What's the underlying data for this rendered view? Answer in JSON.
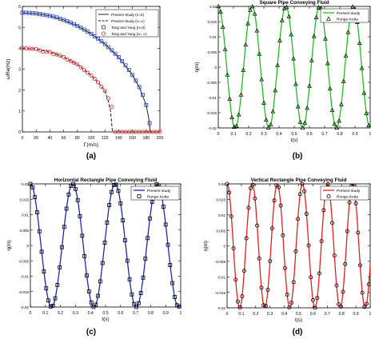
{
  "colors": {
    "panel_a_present": "#222222",
    "panel_a_square": "#1f3fbf",
    "panel_a_circle": "#e02020",
    "panel_b_line": "#22bb22",
    "panel_c_line": "#1a2aa8",
    "panel_d_line": "#e02222",
    "marker": "#000000",
    "axis": "#000000"
  },
  "chart_data": [
    {
      "type": "line",
      "panel_label": "(a)",
      "title": "",
      "xlabel": "Γ(m/s)",
      "ylabel": "ωRe(Hz)",
      "xlim": [
        0,
        200
      ],
      "ylim": [
        0,
        6
      ],
      "xticks": [
        "0",
        "20",
        "40",
        "60",
        "80",
        "100",
        "120",
        "140",
        "160",
        "180",
        "200"
      ],
      "yticks": [
        "0",
        "1",
        "2",
        "3",
        "4",
        "5",
        "6"
      ],
      "legend_position": "top-right",
      "legend": [
        "Present Study (n=0)",
        "Present Study (n=∞)",
        "Tang and Yang (n=0)",
        "Tang and Yang (n= ∞)"
      ],
      "series": [
        {
          "name": "Present Study (n=0)",
          "style": "solid",
          "critical_x": 186,
          "x": [
            0,
            20,
            40,
            60,
            80,
            100,
            120,
            140,
            160,
            170,
            180,
            184,
            186,
            200
          ],
          "y": [
            5.7,
            5.66,
            5.55,
            5.35,
            5.07,
            4.69,
            4.2,
            3.57,
            2.72,
            2.14,
            1.29,
            0.6,
            0,
            0
          ]
        },
        {
          "name": "Present Study (n=∞)",
          "style": "dashed",
          "critical_x": 131,
          "x": [
            0,
            20,
            40,
            60,
            80,
            100,
            110,
            120,
            125,
            128,
            131,
            200
          ],
          "y": [
            4.0,
            3.96,
            3.82,
            3.58,
            3.22,
            2.7,
            2.37,
            1.96,
            1.46,
            1.04,
            0,
            0
          ]
        },
        {
          "name": "Tang and Yang (n=0)",
          "marker": "square",
          "x": [
            0,
            5,
            10,
            15,
            20,
            25,
            30,
            35,
            40,
            45,
            50,
            55,
            60,
            65,
            70,
            75,
            80,
            85,
            90,
            95,
            100,
            105,
            110,
            115,
            120,
            125,
            130,
            135,
            140,
            145,
            150,
            155,
            160,
            165,
            170,
            175,
            180,
            185
          ],
          "y": [
            5.7,
            5.7,
            5.69,
            5.67,
            5.66,
            5.63,
            5.61,
            5.58,
            5.55,
            5.51,
            5.47,
            5.41,
            5.35,
            5.29,
            5.23,
            5.15,
            5.07,
            4.98,
            4.89,
            4.79,
            4.69,
            4.57,
            4.46,
            4.33,
            4.2,
            4.05,
            3.9,
            3.74,
            3.57,
            3.38,
            3.18,
            2.96,
            2.72,
            2.45,
            2.14,
            1.77,
            1.29,
            0.42
          ]
        },
        {
          "name": "Tang and Yang (n= ∞)",
          "marker": "circle",
          "x": [
            0,
            5,
            10,
            15,
            20,
            25,
            30,
            35,
            40,
            45,
            50,
            55,
            60,
            65,
            70,
            75,
            80,
            85,
            90,
            95,
            100,
            105,
            110,
            115,
            120,
            125,
            130,
            135,
            140,
            145,
            150,
            155,
            160,
            165,
            170,
            175,
            180,
            185,
            190,
            195,
            200
          ],
          "y": [
            4.0,
            3.99,
            3.98,
            3.97,
            3.96,
            3.9,
            3.84,
            3.83,
            3.82,
            3.73,
            3.7,
            3.64,
            3.58,
            3.47,
            3.39,
            3.3,
            3.22,
            3.08,
            2.95,
            2.83,
            2.7,
            2.54,
            2.37,
            2.16,
            1.96,
            1.6,
            1.2,
            0,
            0,
            0,
            0,
            0,
            0,
            0,
            0,
            0,
            0,
            0,
            0,
            0,
            0
          ]
        }
      ]
    },
    {
      "type": "line",
      "panel_label": "(b)",
      "title": "Square Pipe Conveying Fluid",
      "xlabel": "t(s)",
      "ylabel": "η(m)",
      "xlim": [
        0,
        1
      ],
      "ylim": [
        -0.02,
        0.02
      ],
      "xticks": [
        "0",
        "0.1",
        "0.2",
        "0.3",
        "0.4",
        "0.5",
        "0.6",
        "0.7",
        "0.8",
        "0.9",
        "1"
      ],
      "yticks": [
        "-0.02",
        "-0.015",
        "-0.01",
        "-0.005",
        "0",
        "0.005",
        "0.01",
        "0.015",
        "0.02"
      ],
      "legend_position": "top-right",
      "legend": [
        "Present study",
        "Runge-Kutta"
      ],
      "series": [
        {
          "name": "Present study",
          "style": "solid",
          "function": "0.02*cos(2*pi*f*t)",
          "frequency_hz": 4.5
        },
        {
          "name": "Runge-Kutta",
          "marker": "triangle",
          "function": "0.02*cos(2*pi*f*t)",
          "frequency_hz": 4.5,
          "sample_step": 0.015
        }
      ]
    },
    {
      "type": "line",
      "panel_label": "(c)",
      "title": "Horizontal Rectangle Pipe Conveying Fluid",
      "xlabel": "t(s)",
      "ylabel": "η(m)",
      "xlim": [
        0,
        1
      ],
      "ylim": [
        -0.02,
        0.02
      ],
      "xticks": [
        "0",
        "0.1",
        "0.2",
        "0.3",
        "0.4",
        "0.5",
        "0.6",
        "0.7",
        "0.8",
        "0.9",
        "1"
      ],
      "yticks": [
        "-0.02",
        "-0.015",
        "-0.01",
        "-0.005",
        "0",
        "0.005",
        "0.01",
        "0.015",
        "0.02"
      ],
      "legend_position": "top-right",
      "legend": [
        "Present study",
        "Runge-Kutta"
      ],
      "series": [
        {
          "name": "Present study",
          "style": "solid",
          "function": "0.02*cos(2*pi*f*t)",
          "frequency_hz": 3.55
        },
        {
          "name": "Runge-Kutta",
          "marker": "square",
          "function": "0.02*cos(2*pi*f*t)",
          "frequency_hz": 3.55,
          "sample_step": 0.015
        }
      ]
    },
    {
      "type": "line",
      "panel_label": "(d)",
      "title": "Vertical Rectangle Pipe Conveying Fluid",
      "xlabel": "t(s)",
      "ylabel": "η(m)",
      "xlim": [
        0,
        1
      ],
      "ylim": [
        -0.02,
        0.02
      ],
      "xticks": [
        "0",
        "0.1",
        "0.2",
        "0.3",
        "0.4",
        "0.5",
        "0.6",
        "0.7",
        "0.8",
        "0.9",
        "1"
      ],
      "yticks": [
        "-0.02",
        "-0.015",
        "-0.01",
        "-0.005",
        "0",
        "0.005",
        "0.01",
        "0.015",
        "0.02"
      ],
      "legend_position": "top-right",
      "legend": [
        "Present study",
        "Runge-Kutta"
      ],
      "series": [
        {
          "name": "Present study",
          "style": "solid",
          "function": "0.02*cos(2*pi*f*t)",
          "frequency_hz": 5.7
        },
        {
          "name": "Runge-Kutta",
          "marker": "circle",
          "function": "0.02*cos(2*pi*f*t)",
          "frequency_hz": 5.7,
          "sample_step": 0.015
        }
      ]
    }
  ]
}
